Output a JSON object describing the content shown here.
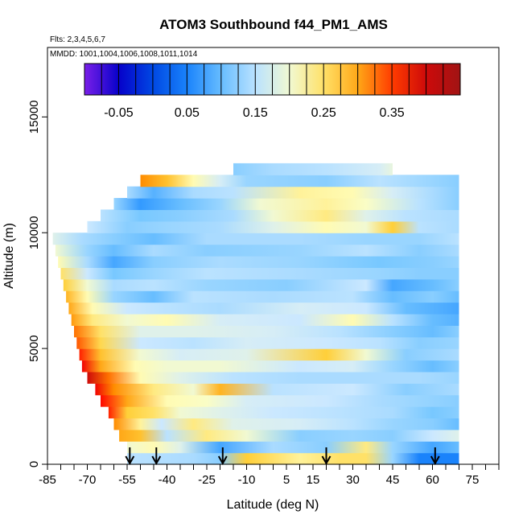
{
  "chart_data": {
    "type": "heatmap",
    "title": "ATOM3 Southbound f44_PM1_AMS",
    "flights_label": "Flts: 2,3,4,5,6,7",
    "mmdd_label": "MMDD: 1001,1004,1006,1008,1011,1014",
    "xlabel": "Latitude (deg N)",
    "ylabel": "Altitude (m)",
    "xlim": [
      -85,
      85
    ],
    "ylim": [
      0,
      18000
    ],
    "x_ticks": [
      -85,
      -70,
      -55,
      -40,
      -25,
      -10,
      5,
      15,
      30,
      45,
      60,
      75
    ],
    "y_ticks": [
      0,
      5000,
      10000,
      15000
    ],
    "colorbar": {
      "ticks": [
        -0.05,
        0.05,
        0.15,
        0.25,
        0.35
      ],
      "tick_labels": [
        "-0.05",
        "0.05",
        "0.15",
        "0.25",
        "0.35"
      ],
      "range": [
        -0.1,
        0.425
      ],
      "colors": [
        "#7a1fe8",
        "#0000c8",
        "#0050e6",
        "#1e8cff",
        "#78c8ff",
        "#cfeaff",
        "#ffffc0",
        "#ffd23c",
        "#ff8c00",
        "#ff0000",
        "#a01414"
      ]
    },
    "profile_latitudes": [
      -54,
      -44,
      -19,
      20,
      61
    ],
    "altitude_bin_m": 500,
    "bands": [
      {
        "alt": 250,
        "points": [
          [
            -55,
            0.15
          ],
          [
            -30,
            0.14
          ],
          [
            -20,
            0.12
          ],
          [
            -10,
            0.27
          ],
          [
            10,
            0.23
          ],
          [
            25,
            0.25
          ],
          [
            35,
            0.25
          ],
          [
            45,
            0.13
          ],
          [
            55,
            0.05
          ],
          [
            70,
            0.05
          ]
        ]
      },
      {
        "alt": 750,
        "points": [
          [
            -55,
            0.2
          ],
          [
            -45,
            0.22
          ],
          [
            -35,
            0.18
          ],
          [
            -20,
            0.08
          ],
          [
            0,
            0.14
          ],
          [
            20,
            0.12
          ],
          [
            35,
            0.24
          ],
          [
            45,
            0.13
          ],
          [
            60,
            0.08
          ],
          [
            70,
            0.1
          ]
        ]
      },
      {
        "alt": 1250,
        "points": [
          [
            -58,
            0.3
          ],
          [
            -50,
            0.28
          ],
          [
            -40,
            0.15
          ],
          [
            -25,
            0.24
          ],
          [
            -10,
            0.2
          ],
          [
            10,
            0.12
          ],
          [
            30,
            0.13
          ],
          [
            45,
            0.12
          ],
          [
            60,
            0.16
          ],
          [
            70,
            0.18
          ]
        ]
      },
      {
        "alt": 1750,
        "points": [
          [
            -60,
            0.32
          ],
          [
            -50,
            0.23
          ],
          [
            -42,
            0.16
          ],
          [
            -30,
            0.24
          ],
          [
            -15,
            0.18
          ],
          [
            10,
            0.17
          ],
          [
            30,
            0.15
          ],
          [
            45,
            0.13
          ],
          [
            60,
            0.12
          ],
          [
            70,
            0.1
          ]
        ]
      },
      {
        "alt": 2250,
        "points": [
          [
            -62,
            0.36
          ],
          [
            -55,
            0.27
          ],
          [
            -45,
            0.25
          ],
          [
            -35,
            0.2
          ],
          [
            -20,
            0.18
          ],
          [
            0,
            0.16
          ],
          [
            25,
            0.15
          ],
          [
            45,
            0.14
          ],
          [
            60,
            0.11
          ],
          [
            70,
            0.12
          ]
        ]
      },
      {
        "alt": 2750,
        "points": [
          [
            -65,
            0.37
          ],
          [
            -55,
            0.3
          ],
          [
            -40,
            0.22
          ],
          [
            -25,
            0.21
          ],
          [
            -10,
            0.17
          ],
          [
            20,
            0.16
          ],
          [
            40,
            0.14
          ],
          [
            55,
            0.13
          ],
          [
            70,
            0.12
          ]
        ]
      },
      {
        "alt": 3250,
        "points": [
          [
            -67,
            0.38
          ],
          [
            -60,
            0.32
          ],
          [
            -45,
            0.24
          ],
          [
            -30,
            0.2
          ],
          [
            -20,
            0.29
          ],
          [
            0,
            0.15
          ],
          [
            30,
            0.16
          ],
          [
            50,
            0.12
          ],
          [
            70,
            0.14
          ]
        ]
      },
      {
        "alt": 3750,
        "points": [
          [
            -70,
            0.4
          ],
          [
            -62,
            0.33
          ],
          [
            -50,
            0.22
          ],
          [
            -35,
            0.18
          ],
          [
            -15,
            0.15
          ],
          [
            10,
            0.14
          ],
          [
            35,
            0.14
          ],
          [
            55,
            0.14
          ],
          [
            70,
            0.13
          ]
        ]
      },
      {
        "alt": 4250,
        "points": [
          [
            -72,
            0.38
          ],
          [
            -65,
            0.3
          ],
          [
            -52,
            0.22
          ],
          [
            -40,
            0.2
          ],
          [
            -20,
            0.2
          ],
          [
            10,
            0.16
          ],
          [
            30,
            0.17
          ],
          [
            45,
            0.13
          ],
          [
            60,
            0.1
          ],
          [
            70,
            0.12
          ]
        ]
      },
      {
        "alt": 4750,
        "points": [
          [
            -73,
            0.36
          ],
          [
            -65,
            0.28
          ],
          [
            -50,
            0.2
          ],
          [
            -35,
            0.17
          ],
          [
            -10,
            0.18
          ],
          [
            20,
            0.27
          ],
          [
            35,
            0.2
          ],
          [
            50,
            0.12
          ],
          [
            70,
            0.14
          ]
        ]
      },
      {
        "alt": 5250,
        "points": [
          [
            -74,
            0.34
          ],
          [
            -65,
            0.26
          ],
          [
            -50,
            0.16
          ],
          [
            -30,
            0.15
          ],
          [
            -10,
            0.17
          ],
          [
            20,
            0.16
          ],
          [
            40,
            0.15
          ],
          [
            55,
            0.12
          ],
          [
            70,
            0.13
          ]
        ]
      },
      {
        "alt": 5750,
        "points": [
          [
            -75,
            0.33
          ],
          [
            -65,
            0.25
          ],
          [
            -50,
            0.18
          ],
          [
            -30,
            0.18
          ],
          [
            0,
            0.17
          ],
          [
            25,
            0.15
          ],
          [
            45,
            0.12
          ],
          [
            60,
            0.1
          ],
          [
            70,
            0.12
          ]
        ]
      },
      {
        "alt": 6250,
        "points": [
          [
            -76,
            0.31
          ],
          [
            -68,
            0.24
          ],
          [
            -55,
            0.2
          ],
          [
            -40,
            0.22
          ],
          [
            -20,
            0.17
          ],
          [
            10,
            0.16
          ],
          [
            30,
            0.22
          ],
          [
            45,
            0.15
          ],
          [
            60,
            0.1
          ],
          [
            70,
            0.09
          ]
        ]
      },
      {
        "alt": 6750,
        "points": [
          [
            -77,
            0.3
          ],
          [
            -68,
            0.22
          ],
          [
            -55,
            0.16
          ],
          [
            -40,
            0.15
          ],
          [
            -20,
            0.14
          ],
          [
            10,
            0.17
          ],
          [
            35,
            0.16
          ],
          [
            50,
            0.1
          ],
          [
            70,
            0.08
          ]
        ]
      },
      {
        "alt": 7250,
        "points": [
          [
            -78,
            0.29
          ],
          [
            -70,
            0.22
          ],
          [
            -60,
            0.13
          ],
          [
            -45,
            0.1
          ],
          [
            -30,
            0.15
          ],
          [
            0,
            0.14
          ],
          [
            30,
            0.15
          ],
          [
            45,
            0.1
          ],
          [
            60,
            0.12
          ],
          [
            70,
            0.1
          ]
        ]
      },
      {
        "alt": 7750,
        "points": [
          [
            -79,
            0.27
          ],
          [
            -70,
            0.2
          ],
          [
            -60,
            0.14
          ],
          [
            -45,
            0.15
          ],
          [
            -25,
            0.13
          ],
          [
            5,
            0.12
          ],
          [
            35,
            0.16
          ],
          [
            45,
            0.08
          ],
          [
            60,
            0.1
          ],
          [
            70,
            0.12
          ]
        ]
      },
      {
        "alt": 8250,
        "points": [
          [
            -80,
            0.25
          ],
          [
            -70,
            0.16
          ],
          [
            -60,
            0.11
          ],
          [
            -45,
            0.13
          ],
          [
            -25,
            0.15
          ],
          [
            10,
            0.14
          ],
          [
            40,
            0.13
          ],
          [
            55,
            0.12
          ],
          [
            70,
            0.12
          ]
        ]
      },
      {
        "alt": 8750,
        "points": [
          [
            -81,
            0.22
          ],
          [
            -70,
            0.14
          ],
          [
            -60,
            0.08
          ],
          [
            -45,
            0.12
          ],
          [
            -20,
            0.14
          ],
          [
            10,
            0.13
          ],
          [
            40,
            0.11
          ],
          [
            60,
            0.12
          ],
          [
            70,
            0.13
          ]
        ]
      },
      {
        "alt": 9250,
        "points": [
          [
            -82,
            0.2
          ],
          [
            -70,
            0.13
          ],
          [
            -60,
            0.1
          ],
          [
            -45,
            0.14
          ],
          [
            -25,
            0.12
          ],
          [
            10,
            0.13
          ],
          [
            35,
            0.15
          ],
          [
            55,
            0.12
          ],
          [
            70,
            0.14
          ]
        ]
      },
      {
        "alt": 9750,
        "points": [
          [
            -83,
            0.18
          ],
          [
            -72,
            0.14
          ],
          [
            -60,
            0.12
          ],
          [
            -45,
            0.1
          ],
          [
            -25,
            0.14
          ],
          [
            10,
            0.14
          ],
          [
            35,
            0.13
          ],
          [
            55,
            0.13
          ],
          [
            70,
            0.15
          ]
        ]
      },
      {
        "alt": 10250,
        "points": [
          [
            -70,
            0.16
          ],
          [
            -55,
            0.12
          ],
          [
            -40,
            0.13
          ],
          [
            -20,
            0.14
          ],
          [
            0,
            0.18
          ],
          [
            20,
            0.22
          ],
          [
            35,
            0.2
          ],
          [
            45,
            0.27
          ],
          [
            55,
            0.15
          ],
          [
            70,
            0.14
          ]
        ]
      },
      {
        "alt": 10750,
        "points": [
          [
            -65,
            0.15
          ],
          [
            -50,
            0.11
          ],
          [
            -35,
            0.12
          ],
          [
            -15,
            0.14
          ],
          [
            0,
            0.2
          ],
          [
            20,
            0.24
          ],
          [
            35,
            0.18
          ],
          [
            50,
            0.15
          ],
          [
            70,
            0.14
          ]
        ]
      },
      {
        "alt": 11250,
        "points": [
          [
            -60,
            0.13
          ],
          [
            -50,
            0.07
          ],
          [
            -35,
            0.1
          ],
          [
            -20,
            0.13
          ],
          [
            -5,
            0.2
          ],
          [
            20,
            0.23
          ],
          [
            35,
            0.21
          ],
          [
            55,
            0.15
          ],
          [
            70,
            0.12
          ]
        ]
      },
      {
        "alt": 11750,
        "points": [
          [
            -55,
            0.14
          ],
          [
            -45,
            0.09
          ],
          [
            -30,
            0.14
          ],
          [
            -15,
            0.15
          ],
          [
            10,
            0.23
          ],
          [
            30,
            0.22
          ],
          [
            45,
            0.17
          ],
          [
            60,
            0.14
          ],
          [
            70,
            0.12
          ]
        ]
      },
      {
        "alt": 12250,
        "points": [
          [
            -50,
            0.32
          ],
          [
            -40,
            0.28
          ],
          [
            -30,
            0.22
          ],
          [
            -20,
            0.17
          ],
          [
            -10,
            0.13
          ],
          [
            20,
            0.12
          ],
          [
            40,
            0.15
          ],
          [
            60,
            0.13
          ],
          [
            70,
            0.12
          ]
        ]
      },
      {
        "alt": 12750,
        "points": [
          [
            -15,
            0.12
          ],
          [
            0,
            0.14
          ],
          [
            20,
            0.15
          ],
          [
            40,
            0.17
          ],
          [
            45,
            0.19
          ]
        ]
      }
    ]
  }
}
